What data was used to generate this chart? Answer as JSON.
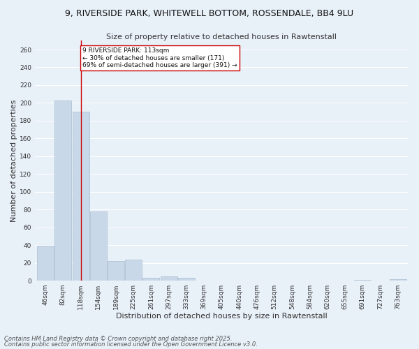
{
  "title": "9, RIVERSIDE PARK, WHITEWELL BOTTOM, ROSSENDALE, BB4 9LU",
  "subtitle": "Size of property relative to detached houses in Rawtenstall",
  "xlabel": "Distribution of detached houses by size in Rawtenstall",
  "ylabel": "Number of detached properties",
  "categories": [
    "46sqm",
    "82sqm",
    "118sqm",
    "154sqm",
    "189sqm",
    "225sqm",
    "261sqm",
    "297sqm",
    "333sqm",
    "369sqm",
    "405sqm",
    "440sqm",
    "476sqm",
    "512sqm",
    "548sqm",
    "584sqm",
    "620sqm",
    "655sqm",
    "691sqm",
    "727sqm",
    "763sqm"
  ],
  "values": [
    39,
    203,
    190,
    78,
    22,
    24,
    3,
    5,
    3,
    0,
    0,
    0,
    0,
    0,
    0,
    0,
    0,
    0,
    1,
    0,
    2
  ],
  "bar_color": "#c8d8e8",
  "bar_edge_color": "#a8bfd0",
  "vline_x_index": 2,
  "vline_color": "#cc0000",
  "annotation_line1": "9 RIVERSIDE PARK: 113sqm",
  "annotation_line2": "← 30% of detached houses are smaller (171)",
  "annotation_line3": "69% of semi-detached houses are larger (391) →",
  "annotation_box_color": "#ffffff",
  "annotation_box_edge": "#cc0000",
  "ylim": [
    0,
    270
  ],
  "yticks": [
    0,
    20,
    40,
    60,
    80,
    100,
    120,
    140,
    160,
    180,
    200,
    220,
    240,
    260
  ],
  "bg_color": "#e8f0f8",
  "grid_color": "#ffffff",
  "footer1": "Contains HM Land Registry data © Crown copyright and database right 2025.",
  "footer2": "Contains public sector information licensed under the Open Government Licence v3.0.",
  "title_fontsize": 9,
  "subtitle_fontsize": 8,
  "axis_label_fontsize": 8,
  "tick_fontsize": 6.5,
  "annotation_fontsize": 6.5,
  "footer_fontsize": 6
}
